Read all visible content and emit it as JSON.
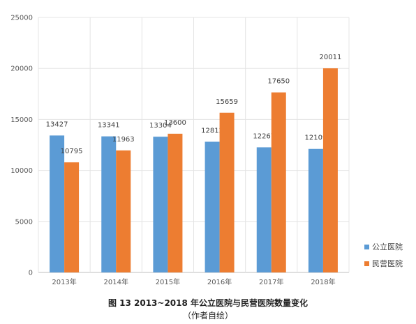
{
  "chart_data": {
    "type": "bar",
    "title": "",
    "xlabel": "",
    "ylabel": "",
    "categories": [
      "2013年",
      "2014年",
      "2015年",
      "2016年",
      "2017年",
      "2018年"
    ],
    "series": [
      {
        "name": "公立医院",
        "values": [
          13427,
          13341,
          13304,
          12812,
          12267,
          12109
        ],
        "color": "#5B9BD5"
      },
      {
        "name": "民营医院",
        "values": [
          10795,
          11963,
          13600,
          15659,
          17650,
          20011
        ],
        "color": "#ED7D31"
      }
    ],
    "ylim": [
      0,
      25000
    ],
    "yticks": [
      0,
      5000,
      10000,
      15000,
      20000,
      25000
    ],
    "grid": true,
    "legend_position": "right"
  },
  "caption": {
    "line1": "图 13    2013~2018 年公立医院与民营医院数量变化",
    "line2": "（作者自绘）"
  }
}
